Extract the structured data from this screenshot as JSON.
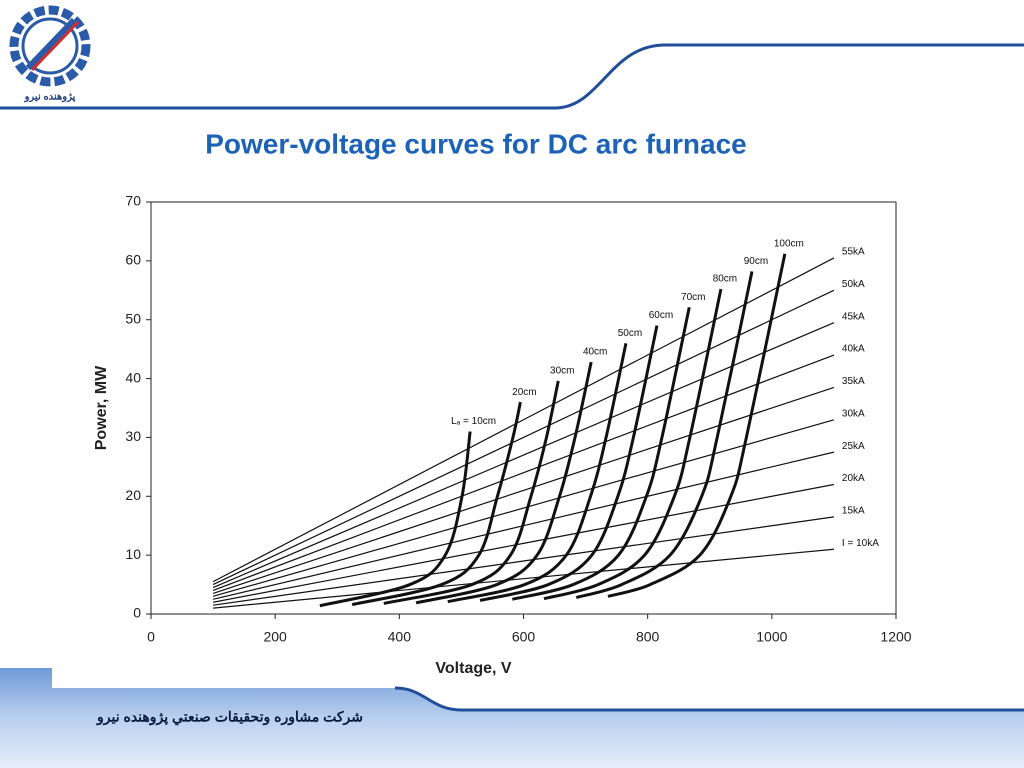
{
  "header": {
    "logo_text": "پژوهنده نیرو"
  },
  "footer": {
    "company": "شرکت مشاوره وتحقیقات صنعتي پژوهنده نيرو"
  },
  "chart_data": {
    "type": "line",
    "title": "Power-voltage curves for DC arc furnace",
    "x_label": "Voltage, V",
    "y_label": "Power, MW",
    "xlim": [
      0,
      1200
    ],
    "ylim": [
      0,
      70
    ],
    "xticks": [
      0,
      200,
      400,
      600,
      800,
      1000,
      1200
    ],
    "yticks": [
      0,
      10,
      20,
      30,
      40,
      50,
      60,
      70
    ],
    "series": [
      {
        "name": "I = 10kA",
        "color": "#111111",
        "x": [
          100,
          1100
        ],
        "values": [
          1,
          11
        ]
      },
      {
        "name": "15kA",
        "color": "#111111",
        "x": [
          100,
          1100
        ],
        "values": [
          1.5,
          16.5
        ]
      },
      {
        "name": "20kA",
        "color": "#111111",
        "x": [
          100,
          1100
        ],
        "values": [
          2,
          22
        ]
      },
      {
        "name": "25kA",
        "color": "#111111",
        "x": [
          100,
          1100
        ],
        "values": [
          2.5,
          27.5
        ]
      },
      {
        "name": "30kA",
        "color": "#111111",
        "x": [
          100,
          1100
        ],
        "values": [
          3,
          33
        ]
      },
      {
        "name": "35kA",
        "color": "#111111",
        "x": [
          100,
          1100
        ],
        "values": [
          3.5,
          38.5
        ]
      },
      {
        "name": "40kA",
        "color": "#111111",
        "x": [
          100,
          1100
        ],
        "values": [
          4,
          44
        ]
      },
      {
        "name": "45kA",
        "color": "#111111",
        "x": [
          100,
          1100
        ],
        "values": [
          4.5,
          49.5
        ]
      },
      {
        "name": "50kA",
        "color": "#111111",
        "x": [
          100,
          1100
        ],
        "values": [
          5,
          55
        ]
      },
      {
        "name": "55kA",
        "color": "#111111",
        "x": [
          100,
          1100
        ],
        "values": [
          5.5,
          60.5
        ]
      },
      {
        "name": "Lₐ = 10cm",
        "color": "#111111",
        "x": [
          272,
          417,
          474,
          501,
          514
        ],
        "values": [
          1.4,
          5,
          10,
          20,
          31
        ]
      },
      {
        "name": "20cm",
        "color": "#111111",
        "x": [
          324,
          468,
          528,
          558,
          583,
          595
        ],
        "values": [
          1.6,
          5,
          10,
          20,
          30,
          36
        ]
      },
      {
        "name": "30cm",
        "color": "#111111",
        "x": [
          375,
          517,
          579,
          612,
          637,
          656
        ],
        "values": [
          1.8,
          5,
          10,
          20,
          30,
          39.6
        ]
      },
      {
        "name": "40cm",
        "color": "#111111",
        "x": [
          427,
          557,
          622,
          658,
          683,
          709
        ],
        "values": [
          1.9,
          5,
          10,
          20,
          30,
          42.8
        ]
      },
      {
        "name": "50cm",
        "color": "#111111",
        "x": [
          478,
          602,
          669,
          708,
          733,
          765
        ],
        "values": [
          2.1,
          5,
          10,
          20,
          30,
          46
        ]
      },
      {
        "name": "60cm",
        "color": "#111111",
        "x": [
          530,
          640,
          710,
          752,
          777,
          815
        ],
        "values": [
          2.3,
          5,
          10,
          20,
          30,
          49
        ]
      },
      {
        "name": "70cm",
        "color": "#111111",
        "x": [
          582,
          680,
          753,
          798,
          823,
          867
        ],
        "values": [
          2.5,
          5,
          10,
          20,
          30,
          52.1
        ]
      },
      {
        "name": "80cm",
        "color": "#111111",
        "x": [
          633,
          720,
          795,
          843,
          868,
          918
        ],
        "values": [
          2.6,
          5,
          10,
          20,
          30,
          55.2
        ]
      },
      {
        "name": "90cm",
        "color": "#111111",
        "x": [
          685,
          758,
          836,
          887,
          912,
          968
        ],
        "values": [
          2.8,
          5,
          10,
          20,
          30,
          58.2
        ]
      },
      {
        "name": "100cm",
        "color": "#111111",
        "x": [
          736,
          804,
          884,
          934,
          959,
          1021
        ],
        "values": [
          3,
          5,
          10,
          20,
          30,
          61.2
        ]
      }
    ]
  }
}
